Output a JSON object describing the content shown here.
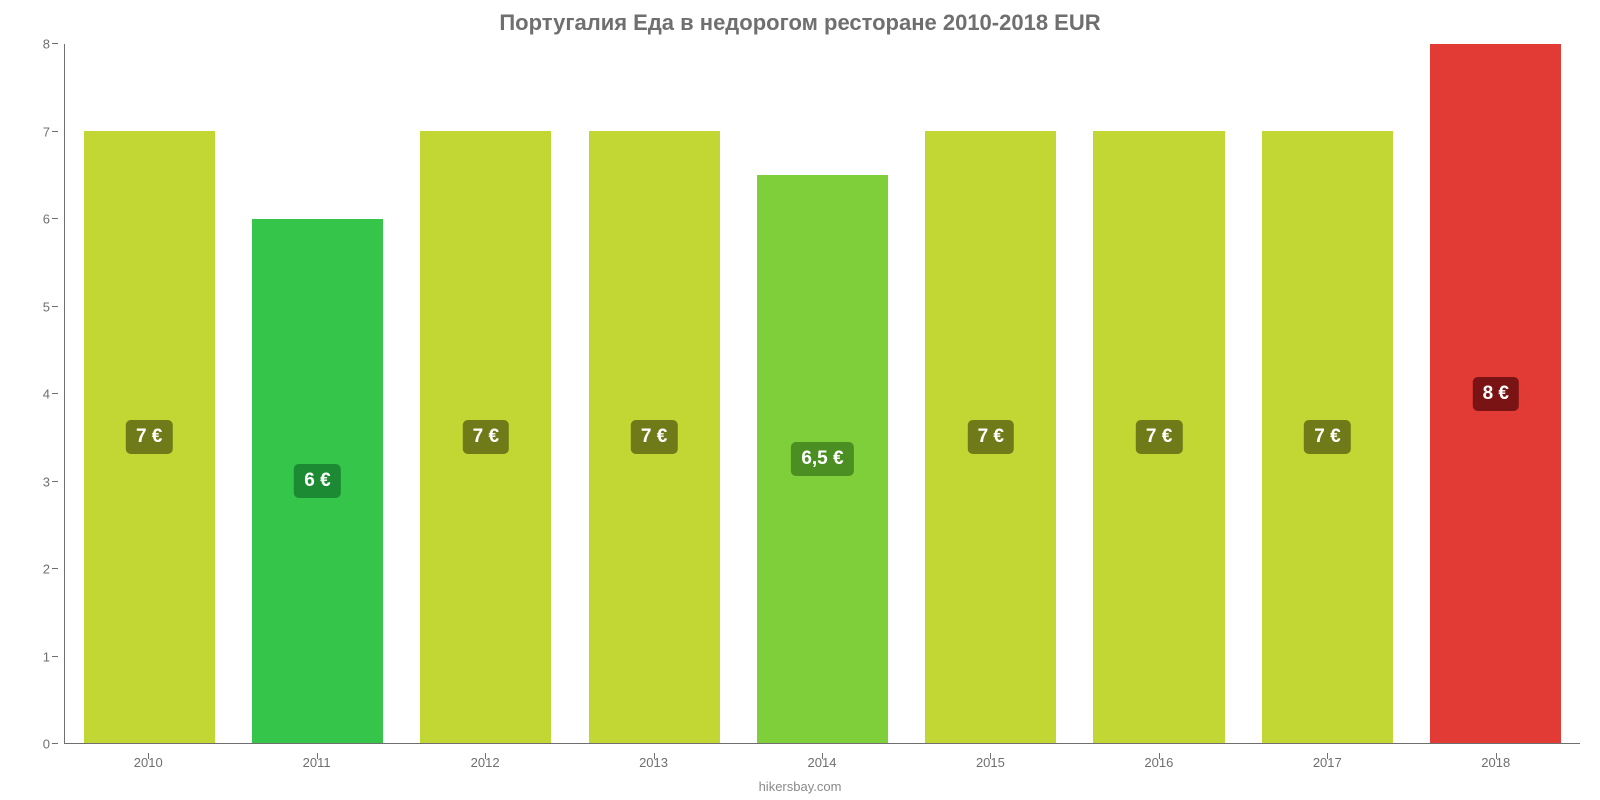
{
  "chart": {
    "type": "bar",
    "title": "Португалия Еда в недорогом ресторане 2010-2018 EUR",
    "title_fontsize": 22,
    "title_color": "#6f6f6f",
    "background_color": "#ffffff",
    "axis_color": "#6f6f6f",
    "tick_font_size": 13,
    "credit": "hikersbay.com",
    "credit_color": "#8a8a8a",
    "ylim": [
      0,
      8
    ],
    "ytick_step": 1,
    "yticks": [
      0,
      1,
      2,
      3,
      4,
      5,
      6,
      7,
      8
    ],
    "categories": [
      "2010",
      "2011",
      "2012",
      "2013",
      "2014",
      "2015",
      "2016",
      "2017",
      "2018"
    ],
    "values": [
      7,
      6,
      7,
      7,
      6.5,
      7,
      7,
      7,
      8
    ],
    "value_labels": [
      "7 €",
      "6 €",
      "7 €",
      "7 €",
      "6,5 €",
      "7 €",
      "7 €",
      "7 €",
      "8 €"
    ],
    "bar_colors": [
      "#c2d734",
      "#34c54a",
      "#c2d734",
      "#c2d734",
      "#7ecf3a",
      "#c2d734",
      "#c2d734",
      "#c2d734",
      "#e23a34"
    ],
    "label_bg_colors": [
      "#6f7b18",
      "#1b8a33",
      "#6f7b18",
      "#6f7b18",
      "#4b8f22",
      "#6f7b18",
      "#6f7b18",
      "#6f7b18",
      "#7a1414"
    ],
    "label_font_size": 19,
    "bar_width_ratio": 0.78
  }
}
